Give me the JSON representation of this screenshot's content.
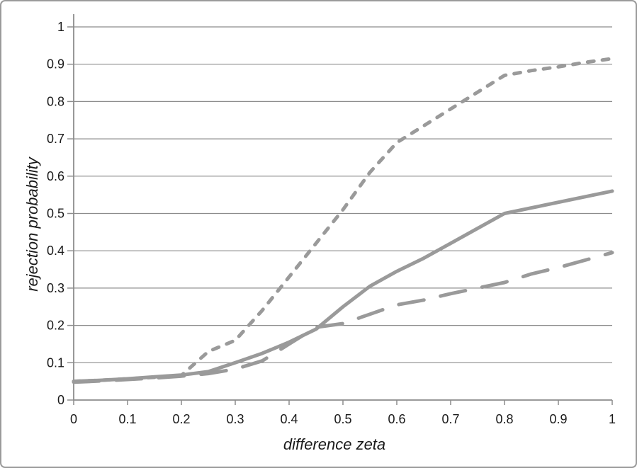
{
  "chart_data": {
    "type": "line",
    "title": "",
    "xlabel": "difference zeta",
    "ylabel": "rejection probability",
    "xlim": [
      0,
      1
    ],
    "ylim": [
      0,
      1
    ],
    "grid": "horizontal",
    "legend": "none",
    "x_tick_labels": [
      "0",
      "0.1",
      "0.2",
      "0.3",
      "0.4",
      "0.5",
      "0.6",
      "0.7",
      "0.8",
      "0.9",
      "1"
    ],
    "y_tick_labels": [
      "0",
      "0.1",
      "0.2",
      "0.3",
      "0.4",
      "0.5",
      "0.6",
      "0.7",
      "0.8",
      "0.9",
      "1"
    ],
    "x": [
      0,
      0.05,
      0.1,
      0.15,
      0.2,
      0.25,
      0.3,
      0.35,
      0.4,
      0.45,
      0.5,
      0.55,
      0.6,
      0.65,
      0.7,
      0.75,
      0.8,
      0.85,
      0.9,
      0.95,
      1
    ],
    "series": [
      {
        "name": "short-dashed",
        "dash": "9 12",
        "values": [
          0.05,
          0.053,
          0.057,
          0.061,
          0.066,
          0.13,
          0.16,
          0.24,
          0.33,
          0.42,
          0.51,
          0.61,
          0.69,
          0.735,
          0.78,
          0.825,
          0.87,
          0.883,
          0.893,
          0.905,
          0.915
        ]
      },
      {
        "name": "solid",
        "dash": "none",
        "values": [
          0.05,
          0.053,
          0.057,
          0.062,
          0.067,
          0.076,
          0.1,
          0.125,
          0.155,
          0.19,
          0.25,
          0.305,
          0.345,
          0.38,
          0.42,
          0.46,
          0.5,
          0.515,
          0.53,
          0.545,
          0.56
        ]
      },
      {
        "name": "long-dashed",
        "dash": "36 24",
        "values": [
          0.048,
          0.051,
          0.055,
          0.059,
          0.064,
          0.071,
          0.083,
          0.105,
          0.15,
          0.195,
          0.205,
          0.23,
          0.255,
          0.268,
          0.285,
          0.3,
          0.315,
          0.338,
          0.355,
          0.375,
          0.395
        ]
      }
    ],
    "colors": {
      "line": "#9a9a9a",
      "gridline": "#8c8c8c",
      "axis": "#8c8c8c",
      "text": "#1a1a1a",
      "frame_border": "#9b9b9b"
    },
    "line_width": 5
  }
}
